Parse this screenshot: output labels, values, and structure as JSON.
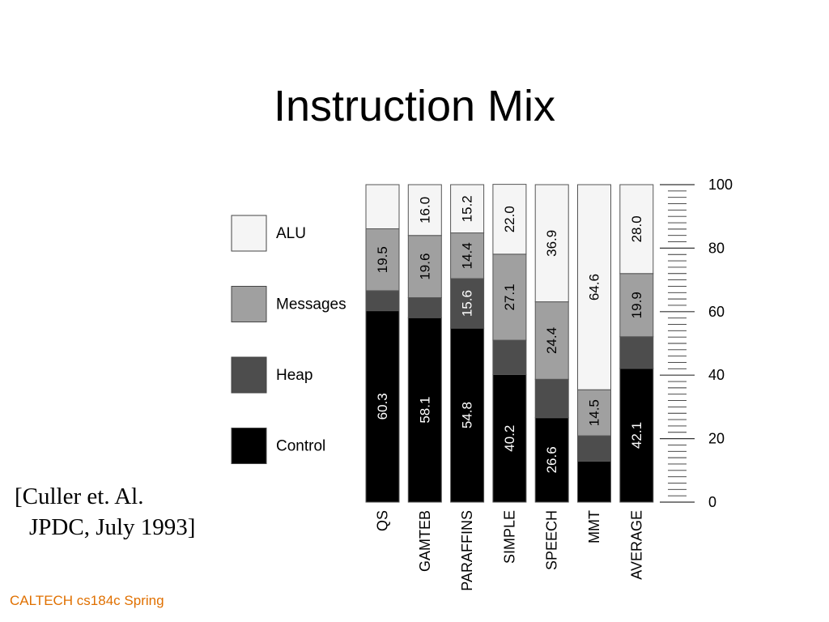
{
  "slide": {
    "title": "Instruction Mix",
    "citation_line1": "[Culler et. Al.",
    "citation_line2": "JPDC, July 1993]",
    "footer": "CALTECH cs184c Spring"
  },
  "chart_data": {
    "type": "bar",
    "stacked": true,
    "orientation": "vertical",
    "title": "",
    "categories": [
      "QS",
      "GAMTEB",
      "PARAFFINS",
      "SIMPLE",
      "SPEECH",
      "MMT",
      "AVERAGE"
    ],
    "series": [
      {
        "name": "Control",
        "color": "#000000",
        "values": [
          60.3,
          58.1,
          54.8,
          40.2,
          26.6,
          12.9,
          42.1
        ],
        "labels": [
          "60.3",
          "58.1",
          "54.8",
          "40.2",
          "26.6",
          "",
          "42.1"
        ]
      },
      {
        "name": "Heap",
        "color": "#4d4d4d",
        "values": [
          6.3,
          6.3,
          15.6,
          10.8,
          12.1,
          8.0,
          10.0
        ],
        "labels": [
          "",
          "",
          "15.6",
          "",
          "",
          "",
          ""
        ]
      },
      {
        "name": "Messages",
        "color": "#a0a0a0",
        "values": [
          19.5,
          19.6,
          14.4,
          27.1,
          24.4,
          14.5,
          19.9
        ],
        "labels": [
          "19.5",
          "19.6",
          "14.4",
          "27.1",
          "24.4",
          "14.5",
          "19.9"
        ]
      },
      {
        "name": "ALU",
        "color": "#f5f5f5",
        "values": [
          13.9,
          16.0,
          15.2,
          22.0,
          36.9,
          64.6,
          28.0
        ],
        "labels": [
          "",
          "16.0",
          "15.2",
          "22.0",
          "36.9",
          "64.6",
          "28.0"
        ]
      }
    ],
    "legend_order": [
      "ALU",
      "Messages",
      "Heap",
      "Control"
    ],
    "legend_position": "left",
    "ylim": [
      0,
      100
    ],
    "y_ticks": [
      0,
      20,
      40,
      60,
      80,
      100
    ],
    "y_minor_step": 2,
    "y_axis_side": "right",
    "label_rotation": "vertical",
    "grid": false
  }
}
